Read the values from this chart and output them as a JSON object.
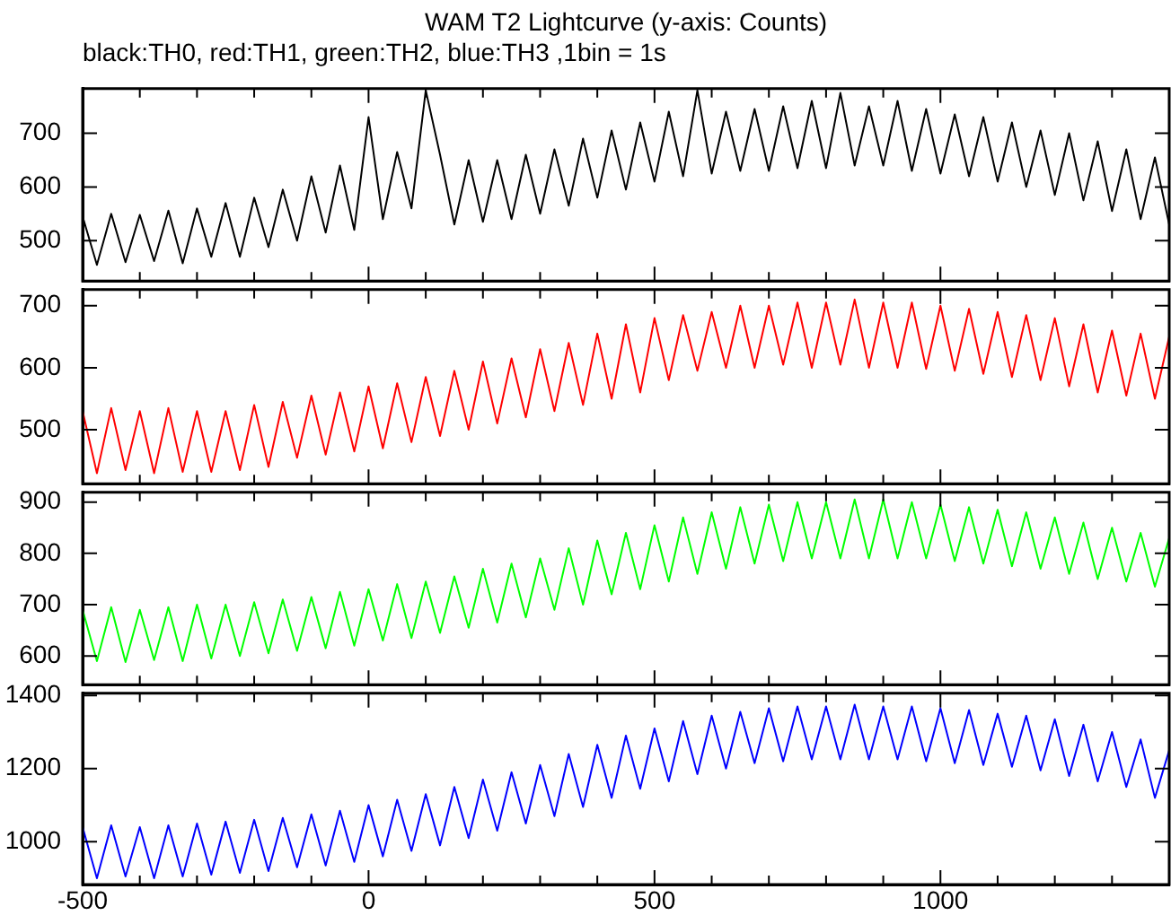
{
  "chart_data": [
    {
      "type": "line",
      "title": "WAM T2 Lightcurve (y-axis: Counts)",
      "subtitle": "black:TH0, red:TH1, green:TH2, blue:TH3 ,1bin = 1s",
      "x": [
        -500,
        -475,
        -450,
        -425,
        -400,
        -375,
        -350,
        -325,
        -300,
        -275,
        -250,
        -225,
        -200,
        -175,
        -150,
        -125,
        -100,
        -75,
        -50,
        -25,
        0,
        25,
        50,
        75,
        100,
        125,
        150,
        175,
        200,
        225,
        250,
        275,
        300,
        325,
        350,
        375,
        400,
        425,
        450,
        475,
        500,
        525,
        550,
        575,
        600,
        625,
        650,
        675,
        700,
        725,
        750,
        775,
        800,
        825,
        850,
        875,
        900,
        925,
        950,
        975,
        1000,
        1025,
        1050,
        1075,
        1100,
        1125,
        1150,
        1175,
        1200,
        1225,
        1250,
        1275,
        1300,
        1325,
        1350,
        1375,
        1400
      ],
      "series": [
        {
          "color": "#000000",
          "values": [
            545,
            455,
            550,
            460,
            548,
            462,
            556,
            458,
            560,
            470,
            570,
            470,
            580,
            488,
            595,
            500,
            620,
            515,
            640,
            520,
            730,
            540,
            665,
            560,
            780,
            660,
            530,
            650,
            535,
            650,
            540,
            660,
            550,
            670,
            565,
            690,
            580,
            705,
            595,
            720,
            610,
            740,
            620,
            780,
            625,
            740,
            630,
            745,
            630,
            750,
            635,
            760,
            635,
            775,
            640,
            750,
            640,
            760,
            630,
            745,
            625,
            735,
            620,
            730,
            610,
            720,
            600,
            705,
            585,
            700,
            575,
            685,
            555,
            670,
            540,
            655,
            530
          ]
        }
      ],
      "xlim": [
        -500,
        1400
      ],
      "xticks": [
        -500,
        {
          "value": -400,
          "label": null
        },
        {
          "value": -300,
          "label": null
        },
        {
          "value": -200,
          "label": null
        },
        {
          "value": -100,
          "label": null
        },
        0,
        {
          "value": 100,
          "label": null
        },
        {
          "value": 200,
          "label": null
        },
        {
          "value": 300,
          "label": null
        },
        {
          "value": 400,
          "label": null
        },
        500,
        {
          "value": 600,
          "label": null
        },
        {
          "value": 700,
          "label": null
        },
        {
          "value": 800,
          "label": null
        },
        {
          "value": 900,
          "label": null
        },
        1000,
        {
          "value": 1100,
          "label": null
        },
        {
          "value": 1200,
          "label": null
        },
        {
          "value": 1300,
          "label": null
        },
        {
          "value": 1400,
          "label": null
        }
      ],
      "ylim": [
        425,
        783
      ],
      "yticks": [
        500,
        600,
        700
      ],
      "tick_labels": "y"
    },
    {
      "type": "line",
      "x": [
        -500,
        -475,
        -450,
        -425,
        -400,
        -375,
        -350,
        -325,
        -300,
        -275,
        -250,
        -225,
        -200,
        -175,
        -150,
        -125,
        -100,
        -75,
        -50,
        -25,
        0,
        25,
        50,
        75,
        100,
        125,
        150,
        175,
        200,
        225,
        250,
        275,
        300,
        325,
        350,
        375,
        400,
        425,
        450,
        475,
        500,
        525,
        550,
        575,
        600,
        625,
        650,
        675,
        700,
        725,
        750,
        775,
        800,
        825,
        850,
        875,
        900,
        925,
        950,
        975,
        1000,
        1025,
        1050,
        1075,
        1100,
        1125,
        1150,
        1175,
        1200,
        1225,
        1250,
        1275,
        1300,
        1325,
        1350,
        1375,
        1400
      ],
      "series": [
        {
          "color": "#ff0000",
          "values": [
            530,
            430,
            535,
            435,
            530,
            430,
            535,
            432,
            530,
            432,
            530,
            435,
            540,
            440,
            545,
            455,
            555,
            460,
            560,
            465,
            570,
            470,
            575,
            480,
            585,
            490,
            595,
            500,
            610,
            510,
            615,
            520,
            630,
            530,
            640,
            540,
            655,
            550,
            670,
            560,
            680,
            580,
            685,
            595,
            690,
            600,
            700,
            600,
            700,
            605,
            705,
            600,
            705,
            605,
            710,
            600,
            705,
            600,
            705,
            598,
            700,
            595,
            695,
            590,
            690,
            585,
            685,
            580,
            680,
            570,
            670,
            560,
            660,
            555,
            655,
            550,
            650
          ]
        }
      ],
      "xlim": [
        -500,
        1400
      ],
      "xticks": [
        -500,
        {
          "value": -400,
          "label": null
        },
        {
          "value": -300,
          "label": null
        },
        {
          "value": -200,
          "label": null
        },
        {
          "value": -100,
          "label": null
        },
        0,
        {
          "value": 100,
          "label": null
        },
        {
          "value": 200,
          "label": null
        },
        {
          "value": 300,
          "label": null
        },
        {
          "value": 400,
          "label": null
        },
        500,
        {
          "value": 600,
          "label": null
        },
        {
          "value": 700,
          "label": null
        },
        {
          "value": 800,
          "label": null
        },
        {
          "value": 900,
          "label": null
        },
        1000,
        {
          "value": 1100,
          "label": null
        },
        {
          "value": 1200,
          "label": null
        },
        {
          "value": 1300,
          "label": null
        },
        {
          "value": 1400,
          "label": null
        }
      ],
      "ylim": [
        413,
        726
      ],
      "yticks": [
        500,
        600,
        700
      ],
      "tick_labels": "y"
    },
    {
      "type": "line",
      "x": [
        -500,
        -475,
        -450,
        -425,
        -400,
        -375,
        -350,
        -325,
        -300,
        -275,
        -250,
        -225,
        -200,
        -175,
        -150,
        -125,
        -100,
        -75,
        -50,
        -25,
        0,
        25,
        50,
        75,
        100,
        125,
        150,
        175,
        200,
        225,
        250,
        275,
        300,
        325,
        350,
        375,
        400,
        425,
        450,
        475,
        500,
        525,
        550,
        575,
        600,
        625,
        650,
        675,
        700,
        725,
        750,
        775,
        800,
        825,
        850,
        875,
        900,
        925,
        950,
        975,
        1000,
        1025,
        1050,
        1075,
        1100,
        1125,
        1150,
        1175,
        1200,
        1225,
        1250,
        1275,
        1300,
        1325,
        1350,
        1375,
        1400
      ],
      "series": [
        {
          "color": "#00ff00",
          "values": [
            690,
            590,
            695,
            588,
            690,
            592,
            695,
            590,
            700,
            595,
            700,
            600,
            705,
            605,
            710,
            610,
            715,
            615,
            725,
            620,
            730,
            630,
            740,
            635,
            745,
            645,
            755,
            655,
            770,
            665,
            780,
            675,
            790,
            690,
            810,
            700,
            825,
            720,
            840,
            730,
            855,
            745,
            870,
            760,
            880,
            770,
            890,
            780,
            895,
            785,
            900,
            790,
            900,
            790,
            905,
            790,
            905,
            790,
            900,
            790,
            895,
            785,
            890,
            780,
            885,
            775,
            880,
            770,
            870,
            760,
            860,
            750,
            850,
            745,
            840,
            735,
            830
          ]
        }
      ],
      "xlim": [
        -500,
        1400
      ],
      "xticks": [
        -500,
        {
          "value": -400,
          "label": null
        },
        {
          "value": -300,
          "label": null
        },
        {
          "value": -200,
          "label": null
        },
        {
          "value": -100,
          "label": null
        },
        0,
        {
          "value": 100,
          "label": null
        },
        {
          "value": 200,
          "label": null
        },
        {
          "value": 300,
          "label": null
        },
        {
          "value": 400,
          "label": null
        },
        500,
        {
          "value": 600,
          "label": null
        },
        {
          "value": 700,
          "label": null
        },
        {
          "value": 800,
          "label": null
        },
        {
          "value": 900,
          "label": null
        },
        1000,
        {
          "value": 1100,
          "label": null
        },
        {
          "value": 1200,
          "label": null
        },
        {
          "value": 1300,
          "label": null
        },
        {
          "value": 1400,
          "label": null
        }
      ],
      "ylim": [
        544,
        919
      ],
      "yticks": [
        600,
        700,
        800,
        900
      ],
      "tick_labels": "y"
    },
    {
      "type": "line",
      "x": [
        -500,
        -475,
        -450,
        -425,
        -400,
        -375,
        -350,
        -325,
        -300,
        -275,
        -250,
        -225,
        -200,
        -175,
        -150,
        -125,
        -100,
        -75,
        -50,
        -25,
        0,
        25,
        50,
        75,
        100,
        125,
        150,
        175,
        200,
        225,
        250,
        275,
        300,
        325,
        350,
        375,
        400,
        425,
        450,
        475,
        500,
        525,
        550,
        575,
        600,
        625,
        650,
        675,
        700,
        725,
        750,
        775,
        800,
        825,
        850,
        875,
        900,
        925,
        950,
        975,
        1000,
        1025,
        1050,
        1075,
        1100,
        1125,
        1150,
        1175,
        1200,
        1225,
        1250,
        1275,
        1300,
        1325,
        1350,
        1375,
        1400
      ],
      "series": [
        {
          "color": "#0000ff",
          "values": [
            1040,
            900,
            1045,
            905,
            1040,
            900,
            1045,
            905,
            1050,
            910,
            1055,
            915,
            1060,
            920,
            1065,
            930,
            1075,
            935,
            1085,
            945,
            1100,
            960,
            1115,
            975,
            1130,
            990,
            1150,
            1010,
            1170,
            1030,
            1190,
            1050,
            1210,
            1070,
            1240,
            1095,
            1265,
            1120,
            1290,
            1145,
            1310,
            1165,
            1330,
            1185,
            1345,
            1200,
            1355,
            1215,
            1365,
            1220,
            1370,
            1225,
            1370,
            1225,
            1375,
            1225,
            1370,
            1225,
            1370,
            1220,
            1365,
            1215,
            1360,
            1210,
            1350,
            1205,
            1345,
            1195,
            1335,
            1180,
            1320,
            1165,
            1300,
            1150,
            1280,
            1120,
            1250
          ]
        }
      ],
      "xlim": [
        -500,
        1400
      ],
      "xticks": [
        -500,
        {
          "value": -400,
          "label": null
        },
        {
          "value": -300,
          "label": null
        },
        {
          "value": -200,
          "label": null
        },
        {
          "value": -100,
          "label": null
        },
        0,
        {
          "value": 100,
          "label": null
        },
        {
          "value": 200,
          "label": null
        },
        {
          "value": 300,
          "label": null
        },
        {
          "value": 400,
          "label": null
        },
        500,
        {
          "value": 600,
          "label": null
        },
        {
          "value": 700,
          "label": null
        },
        {
          "value": 800,
          "label": null
        },
        {
          "value": 900,
          "label": null
        },
        1000,
        {
          "value": 1100,
          "label": null
        },
        {
          "value": 1200,
          "label": null
        },
        {
          "value": 1300,
          "label": null
        },
        {
          "value": 1400,
          "label": null
        }
      ],
      "ylim": [
        883,
        1406
      ],
      "yticks": [
        1000,
        1200,
        1400
      ]
    }
  ]
}
